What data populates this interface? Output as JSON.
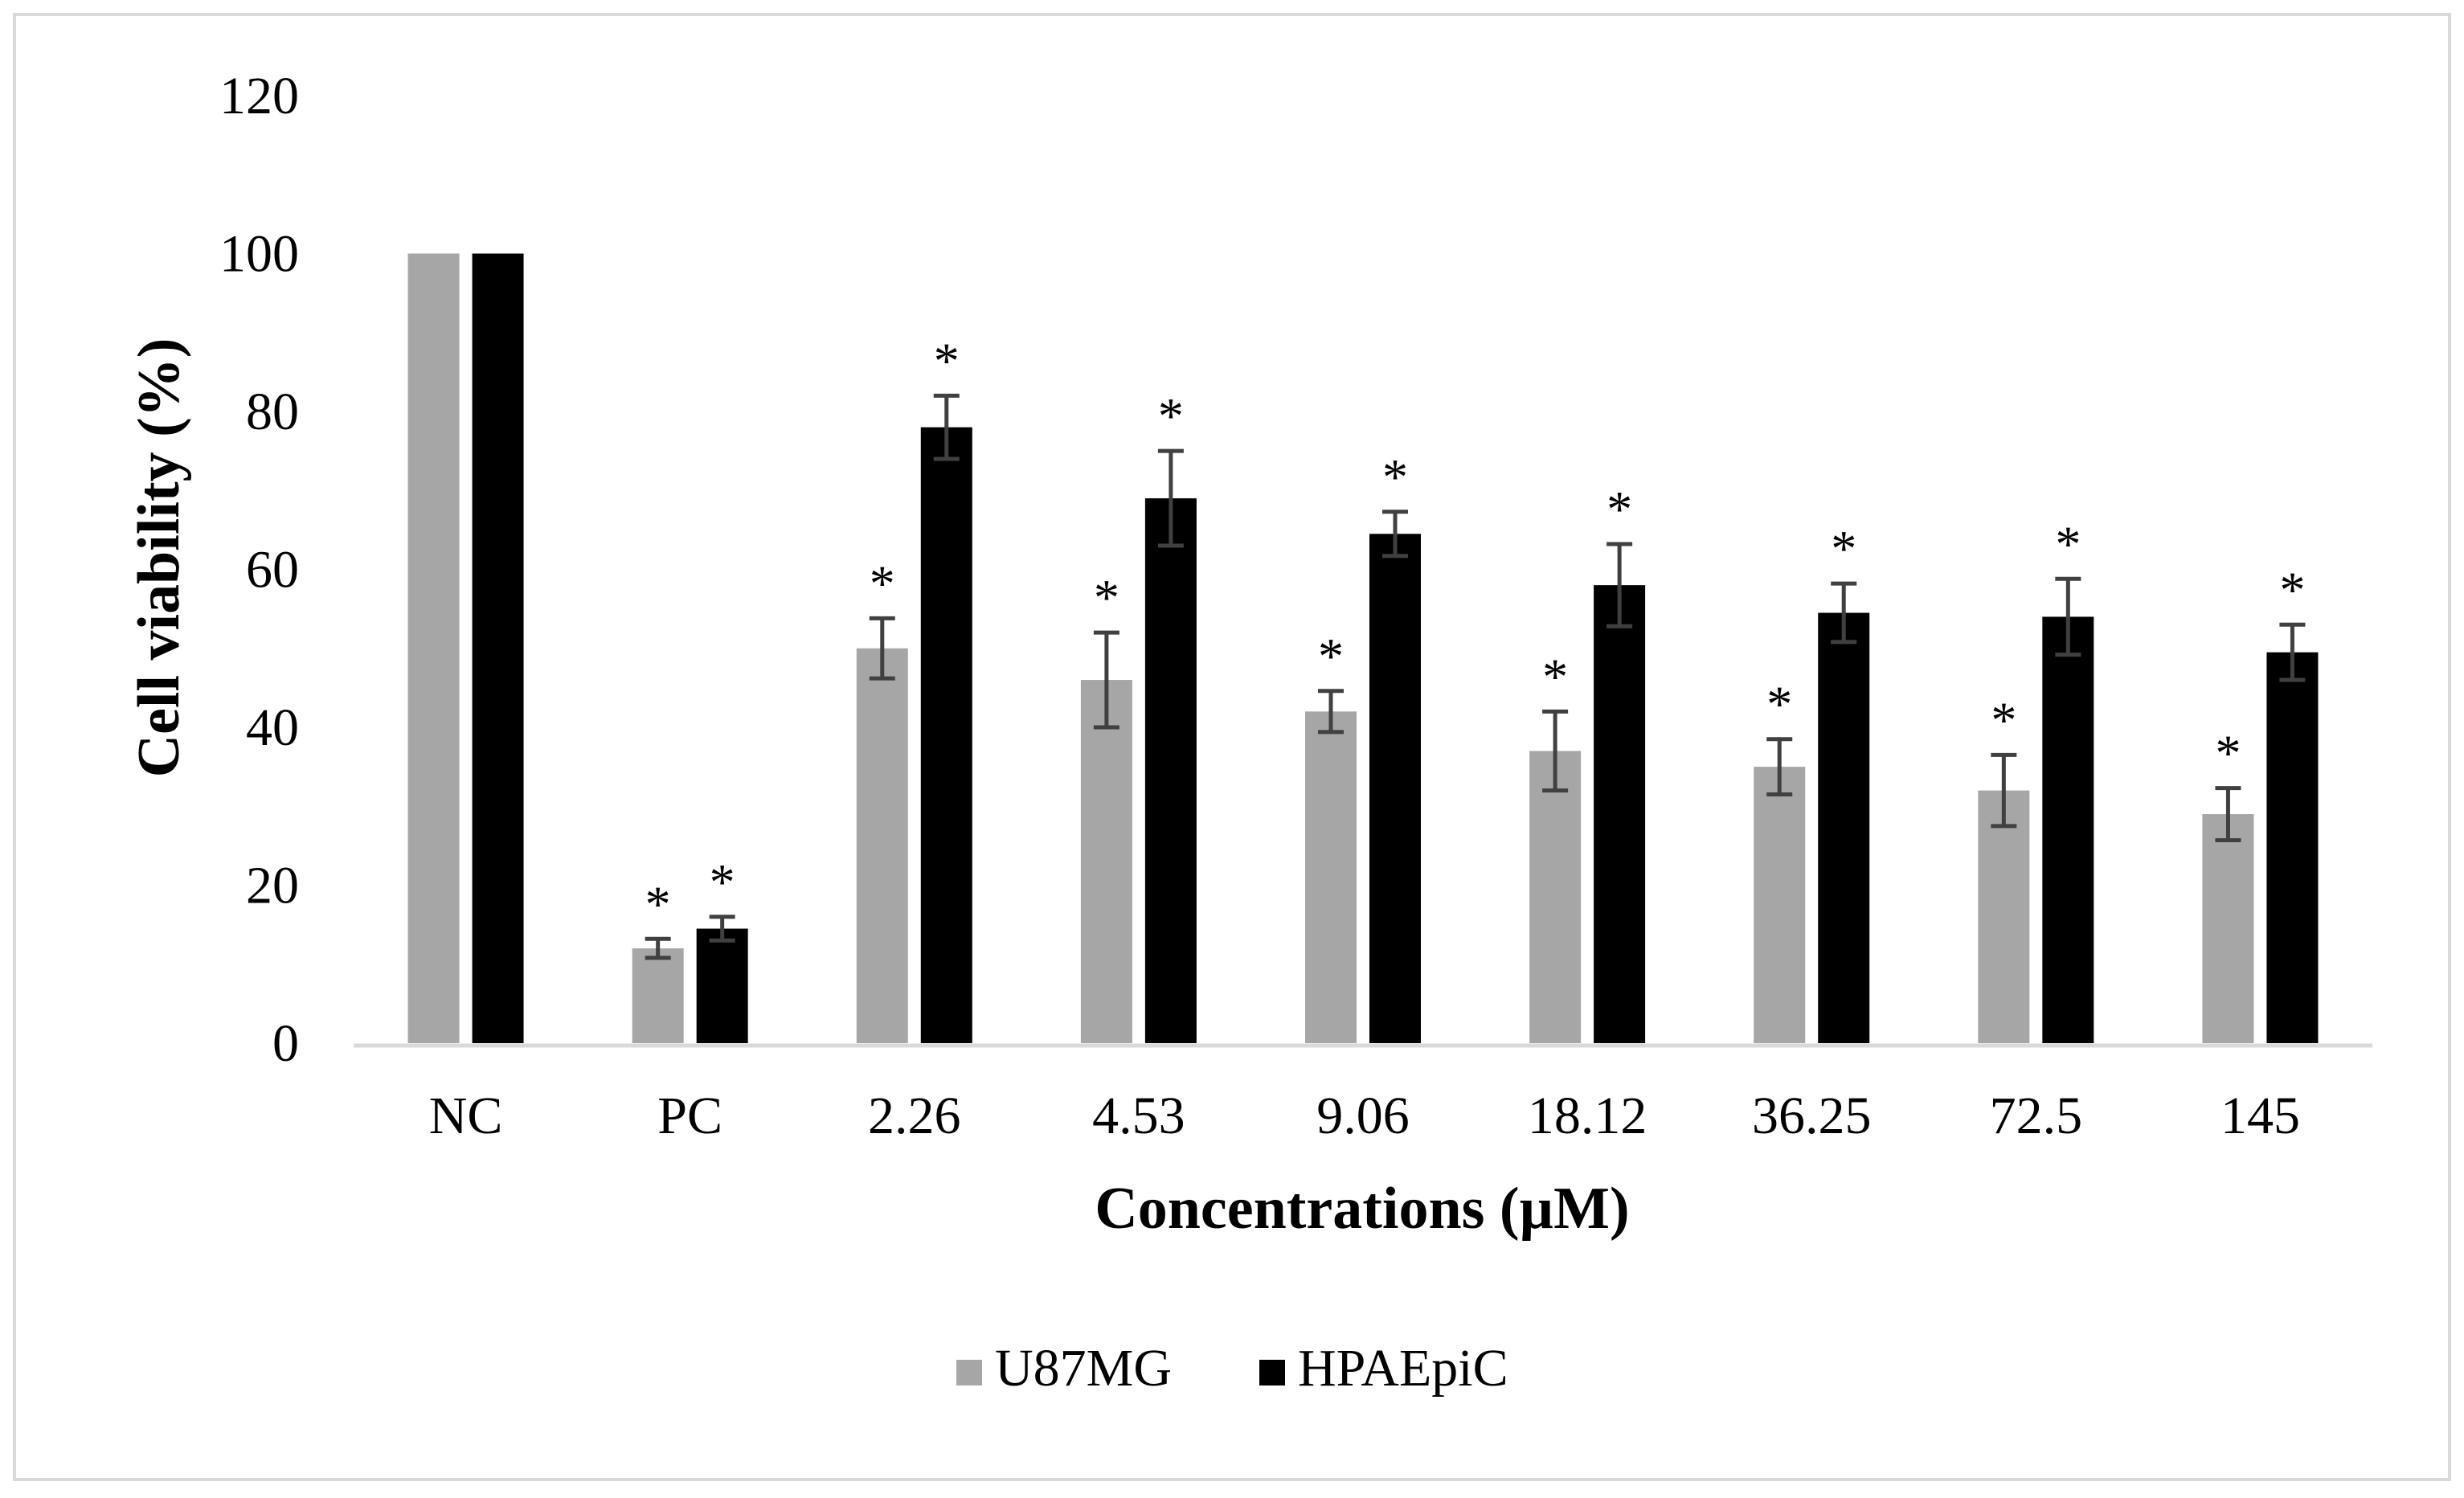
{
  "chart_data": {
    "type": "bar",
    "title": "",
    "xlabel": "Concentrations (µM)",
    "ylabel": "Cell viability (%)",
    "ylim": [
      0,
      120
    ],
    "yticks": [
      "0",
      "20",
      "40",
      "60",
      "80",
      "100",
      "120"
    ],
    "grid": false,
    "legend_position": "bottom",
    "categories": [
      "NC",
      "PC",
      "2.26",
      "4.53",
      "9.06",
      "18.12",
      "36.25",
      "72.5",
      "145"
    ],
    "series": [
      {
        "name": "U87MG",
        "color": "#a6a6a6",
        "values": [
          100,
          12,
          50,
          46,
          42,
          37,
          35,
          32,
          29
        ],
        "errors": [
          0,
          1.2,
          3.8,
          6,
          2.6,
          5,
          3.5,
          4.5,
          3.3
        ],
        "significance": [
          "",
          "*",
          "*",
          "*",
          "*",
          "*",
          "*",
          "*",
          "*"
        ]
      },
      {
        "name": "HPAEpiC",
        "color": "#000000",
        "values": [
          100,
          14.5,
          78,
          69,
          64.5,
          58,
          54.5,
          54,
          49.5
        ],
        "errors": [
          0,
          1.5,
          4,
          6,
          2.8,
          5.2,
          3.7,
          4.8,
          3.5
        ],
        "significance": [
          "",
          "*",
          "*",
          "*",
          "*",
          "*",
          "*",
          "*",
          "*"
        ]
      }
    ],
    "error_bar_color": "#404040",
    "axis_color": "#d9d9d9"
  }
}
